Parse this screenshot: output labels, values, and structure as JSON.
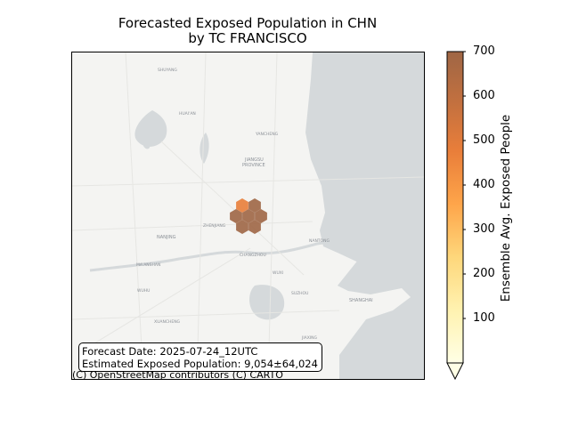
{
  "title": {
    "line1": "Forecasted Exposed Population in CHN",
    "line2": "by TC FRANCISCO"
  },
  "info_box": {
    "forecast_date": "Forecast Date: 2025-07-24_12UTC",
    "exposed_population": "Estimated Exposed Population: 9,054±64,024"
  },
  "attribution": "(C) OpenStreetMap contributors (C) CARTO",
  "colorbar": {
    "label": "Ensemble Avg. Exposed People",
    "min": 0,
    "max": 700,
    "ticks": [
      "100",
      "200",
      "300",
      "400",
      "500",
      "600",
      "700"
    ],
    "colors": [
      "#ffffe5",
      "#fff2b0",
      "#fed77b",
      "#fea54a",
      "#e97e3a",
      "#c2703f",
      "#9f6645"
    ],
    "extend": "min"
  },
  "map_labels": [
    "SHUYANG",
    "HUAI'AN",
    "YANCHENG",
    "JIANGSU",
    "PROVINCE",
    "ZHENJIANG",
    "NANJING",
    "MA'ANSHAN",
    "CHANGZHOU",
    "NANTONG",
    "WUXI",
    "WUHU",
    "SUZHOU",
    "SHANGHAI",
    "XUANCHENG",
    "JIAXING"
  ],
  "hexagons": [
    {
      "name": "hex-1",
      "value": 450
    },
    {
      "name": "hex-2",
      "value": 650
    },
    {
      "name": "hex-3",
      "value": 650
    },
    {
      "name": "hex-4",
      "value": 650
    },
    {
      "name": "hex-5",
      "value": 650
    },
    {
      "name": "hex-6",
      "value": 650
    },
    {
      "name": "hex-7",
      "value": 650
    }
  ]
}
